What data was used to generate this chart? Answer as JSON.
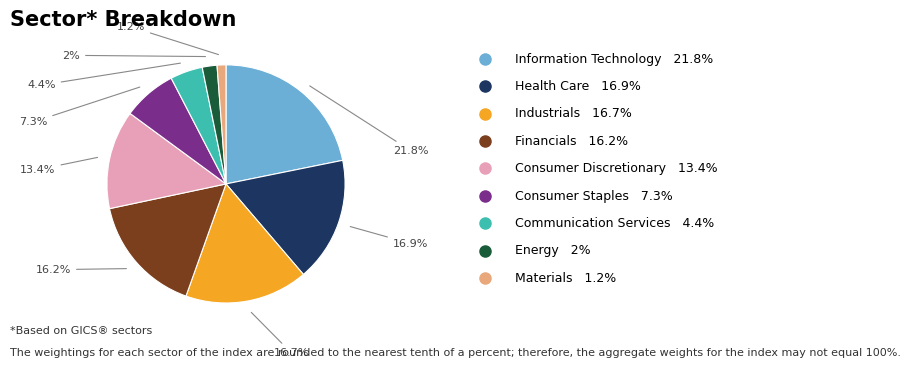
{
  "title": "Sector* Breakdown",
  "sectors": [
    {
      "label": "Information Technology",
      "value": 21.8,
      "color": "#6BAED6"
    },
    {
      "label": "Health Care",
      "value": 16.9,
      "color": "#1C3661"
    },
    {
      "label": "Industrials",
      "value": 16.7,
      "color": "#F5A623"
    },
    {
      "label": "Financials",
      "value": 16.2,
      "color": "#7B3F1E"
    },
    {
      "label": "Consumer Discretionary",
      "value": 13.4,
      "color": "#E8A0B8"
    },
    {
      "label": "Consumer Staples",
      "value": 7.3,
      "color": "#7B2D8B"
    },
    {
      "label": "Communication Services",
      "value": 4.4,
      "color": "#3DBFB0"
    },
    {
      "label": "Energy",
      "value": 2.0,
      "color": "#1A5C3A"
    },
    {
      "label": "Materials",
      "value": 1.2,
      "color": "#E8A87C"
    }
  ],
  "footnote1": "*Based on GICS® sectors",
  "footnote2": "The weightings for each sector of the index are rounded to the nearest tenth of a percent; therefore, the aggregate weights for the index may not equal 100%.",
  "background_color": "#FFFFFF",
  "title_fontsize": 15,
  "legend_fontsize": 9,
  "footnote_fontsize": 8
}
